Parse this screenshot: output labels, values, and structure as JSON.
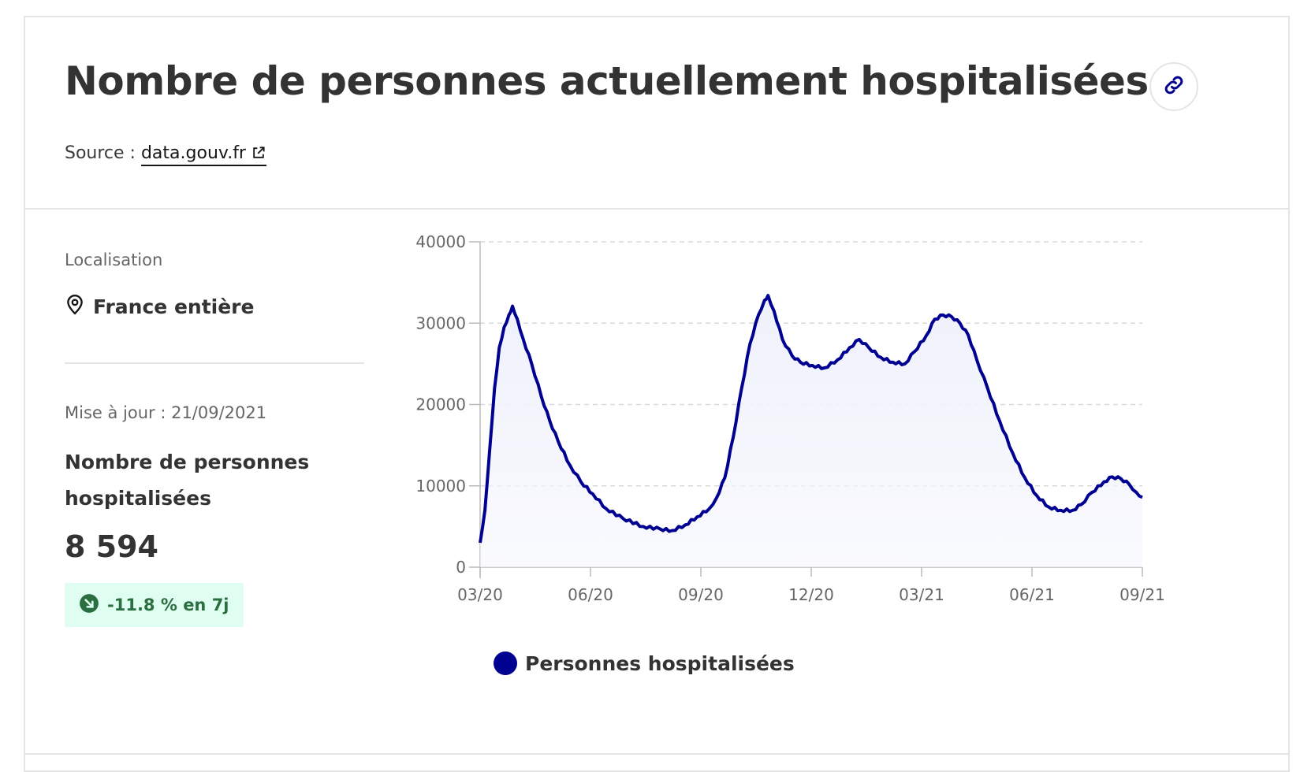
{
  "header": {
    "title": "Nombre de personnes actuellement hospitalisées",
    "source_prefix": "Source : ",
    "source_link": "data.gouv.fr"
  },
  "icons": {
    "permalink": "link-icon",
    "external": "external-link-icon",
    "location": "location-pin-icon",
    "trend": "arrow-down-right-icon"
  },
  "sidebar": {
    "location_label": "Localisation",
    "location_value": "France entière",
    "update_text": "Mise à jour : 21/09/2021",
    "metric_label": "Nombre de personnes hospitalisées",
    "metric_value": "8 594",
    "trend_text": "-11.8 % en 7j"
  },
  "colors": {
    "series": "#000091",
    "area_fill": "#eef0fb",
    "badge_bg": "#dffdf0",
    "badge_text": "#2b6e3f"
  },
  "chart_data": {
    "type": "area",
    "title": "",
    "xlabel": "",
    "ylabel": "",
    "ylim": [
      0,
      40000
    ],
    "yticks": [
      "0",
      "10000",
      "20000",
      "30000",
      "40000"
    ],
    "x_tick_labels": [
      "03/20",
      "06/20",
      "09/20",
      "12/20",
      "03/21",
      "06/21",
      "09/21"
    ],
    "grid": "horizontal dashed",
    "legend_position": "bottom",
    "series": [
      {
        "name": "Personnes hospitalisées",
        "x_start": "2020-03-18",
        "x_end": "2021-09-21",
        "points": [
          [
            "2020-03-18",
            3000
          ],
          [
            "2020-03-22",
            7000
          ],
          [
            "2020-03-26",
            14500
          ],
          [
            "2020-03-30",
            22000
          ],
          [
            "2020-04-03",
            27000
          ],
          [
            "2020-04-07",
            29500
          ],
          [
            "2020-04-11",
            31000
          ],
          [
            "2020-04-14",
            32100
          ],
          [
            "2020-04-18",
            30500
          ],
          [
            "2020-04-23",
            28000
          ],
          [
            "2020-04-30",
            25000
          ],
          [
            "2020-05-08",
            21000
          ],
          [
            "2020-05-15",
            18000
          ],
          [
            "2020-05-22",
            15500
          ],
          [
            "2020-06-01",
            12500
          ],
          [
            "2020-06-10",
            10500
          ],
          [
            "2020-06-20",
            9000
          ],
          [
            "2020-07-01",
            7200
          ],
          [
            "2020-07-15",
            6000
          ],
          [
            "2020-08-01",
            5000
          ],
          [
            "2020-08-15",
            4700
          ],
          [
            "2020-08-25",
            4500
          ],
          [
            "2020-09-05",
            5200
          ],
          [
            "2020-09-15",
            6200
          ],
          [
            "2020-09-25",
            7200
          ],
          [
            "2020-10-01",
            8500
          ],
          [
            "2020-10-08",
            11000
          ],
          [
            "2020-10-15",
            16000
          ],
          [
            "2020-10-22",
            22000
          ],
          [
            "2020-10-29",
            27500
          ],
          [
            "2020-11-05",
            31000
          ],
          [
            "2020-11-10",
            32800
          ],
          [
            "2020-11-13",
            33400
          ],
          [
            "2020-11-18",
            31500
          ],
          [
            "2020-11-25",
            28000
          ],
          [
            "2020-12-03",
            26000
          ],
          [
            "2020-12-10",
            25200
          ],
          [
            "2020-12-20",
            24800
          ],
          [
            "2020-12-30",
            24500
          ],
          [
            "2021-01-10",
            25500
          ],
          [
            "2021-01-20",
            27000
          ],
          [
            "2021-01-28",
            28000
          ],
          [
            "2021-02-05",
            27000
          ],
          [
            "2021-02-15",
            25800
          ],
          [
            "2021-02-25",
            25200
          ],
          [
            "2021-03-07",
            25000
          ],
          [
            "2021-03-15",
            26500
          ],
          [
            "2021-03-25",
            28500
          ],
          [
            "2021-04-01",
            30500
          ],
          [
            "2021-04-08",
            31000
          ],
          [
            "2021-04-15",
            30800
          ],
          [
            "2021-04-22",
            30000
          ],
          [
            "2021-04-29",
            28500
          ],
          [
            "2021-05-06",
            25500
          ],
          [
            "2021-05-15",
            22000
          ],
          [
            "2021-05-25",
            18000
          ],
          [
            "2021-06-05",
            14000
          ],
          [
            "2021-06-15",
            11000
          ],
          [
            "2021-06-25",
            8800
          ],
          [
            "2021-07-05",
            7400
          ],
          [
            "2021-07-15",
            7000
          ],
          [
            "2021-07-25",
            7000
          ],
          [
            "2021-08-01",
            7700
          ],
          [
            "2021-08-10",
            9200
          ],
          [
            "2021-08-20",
            10500
          ],
          [
            "2021-08-27",
            11100
          ],
          [
            "2021-09-03",
            10900
          ],
          [
            "2021-09-10",
            10200
          ],
          [
            "2021-09-16",
            9200
          ],
          [
            "2021-09-21",
            8594
          ]
        ]
      }
    ]
  }
}
